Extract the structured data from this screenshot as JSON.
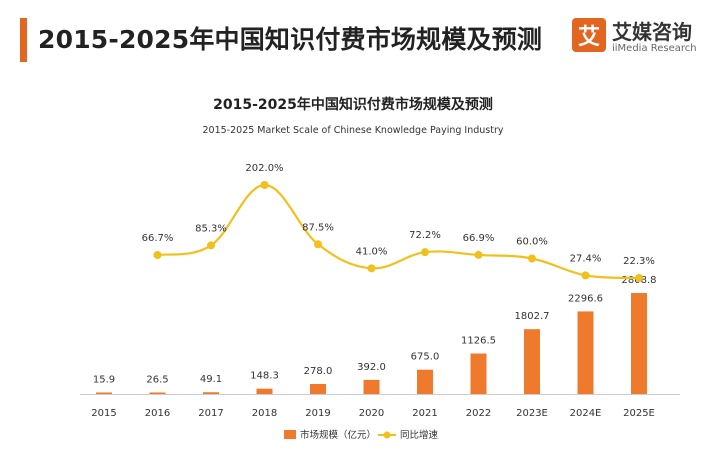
{
  "header": {
    "title": "2015-2025年中国知识付费市场规模及预测"
  },
  "brand": {
    "logo_glyph": "艾",
    "name_cn": "艾媒咨询",
    "name_en": "iiMedia Research",
    "accent_color": "#e2661f"
  },
  "chart_data": {
    "type": "bar",
    "title": "2015-2025年中国知识付费市场规模及预测",
    "subtitle": "2015-2025 Market Scale of Chinese Knowledge Paying Industry",
    "categories": [
      "2015",
      "2016",
      "2017",
      "2018",
      "2019",
      "2020",
      "2021",
      "2022",
      "2023E",
      "2024E",
      "2025E"
    ],
    "series": [
      {
        "name": "市场规模（亿元）",
        "type": "bar",
        "color": "#ef7a2b",
        "values": [
          15.9,
          26.5,
          49.1,
          148.3,
          278.0,
          392.0,
          675.0,
          1126.5,
          1802.7,
          2296.6,
          2808.8
        ],
        "labels": [
          "15.9",
          "26.5",
          "49.1",
          "148.3",
          "278.0",
          "392.0",
          "675.0",
          "1126.5",
          "1802.7",
          "2296.6",
          "2808.8"
        ]
      },
      {
        "name": "同比增速",
        "type": "line",
        "color": "#f2c01d",
        "values": [
          null,
          66.7,
          85.3,
          202.0,
          87.5,
          41.0,
          72.2,
          66.9,
          60.0,
          27.4,
          22.3
        ],
        "labels": [
          "",
          "66.7%",
          "85.3%",
          "202.0%",
          "87.5%",
          "41.0%",
          "72.2%",
          "66.9%",
          "60.0%",
          "27.4%",
          "22.3%"
        ]
      }
    ],
    "legend_position": "bottom-center",
    "grid": false
  }
}
